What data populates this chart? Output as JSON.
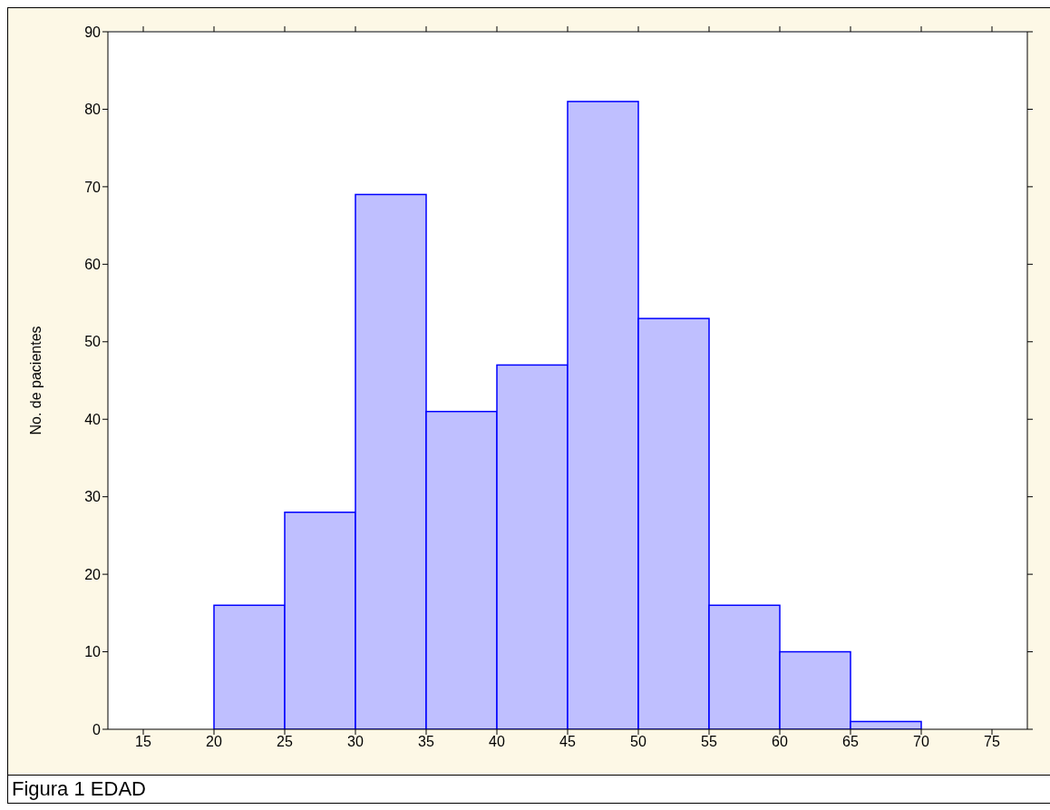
{
  "chart_data": {
    "type": "histogram",
    "ylabel": "No. de pacientes",
    "annotations": [
      "Figura 1 EDAD"
    ],
    "bins": [
      15,
      20,
      25,
      30,
      35,
      40,
      45,
      50,
      55,
      60,
      65,
      70,
      75
    ],
    "values": [
      0,
      16,
      28,
      69,
      41,
      47,
      81,
      53,
      16,
      10,
      1,
      0
    ],
    "color": "#bfbfff",
    "xlim": [
      12.5,
      77.5
    ],
    "xticks": [
      15,
      20,
      25,
      30,
      35,
      40,
      45,
      50,
      55,
      60,
      65,
      70,
      75
    ],
    "ylim": [
      0,
      90
    ],
    "yticks": [
      0,
      10,
      20,
      30,
      40,
      50,
      60,
      70,
      80,
      90
    ]
  }
}
